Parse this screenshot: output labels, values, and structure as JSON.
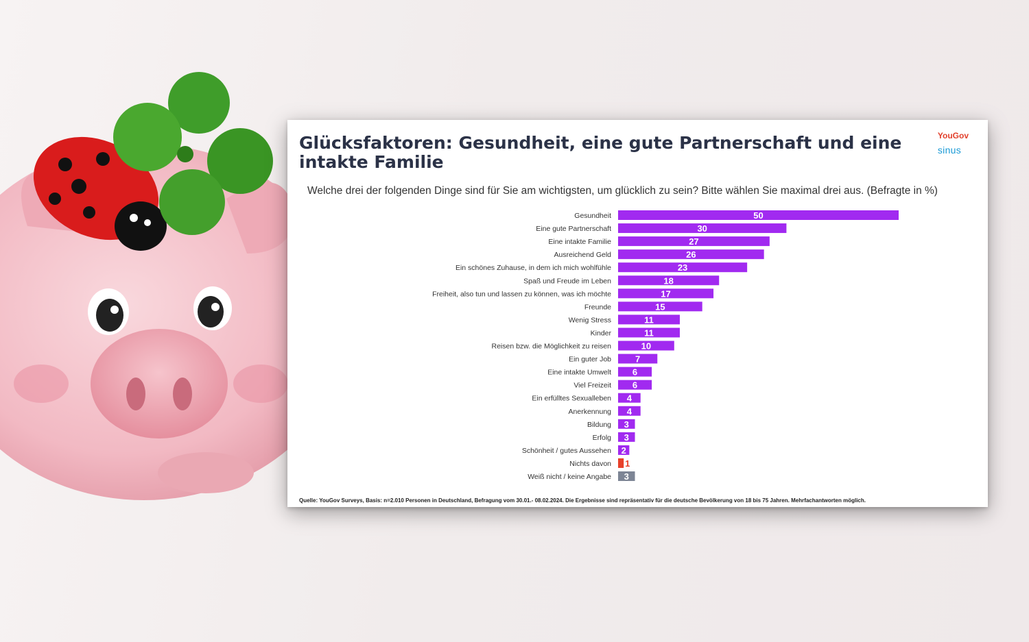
{
  "chart_data": {
    "type": "bar",
    "orientation": "horizontal",
    "title": "Glücksfaktoren: Gesundheit, eine gute Partnerschaft und eine intakte Familie",
    "subtitle": "Welche drei der folgenden Dinge sind für Sie am wichtigsten, um glücklich zu sein? Bitte wählen Sie maximal drei aus. (Befragte in %)",
    "categories": [
      "Gesundheit",
      "Eine gute Partnerschaft",
      "Eine intakte Familie",
      "Ausreichend Geld",
      "Ein schönes Zuhause, in dem ich mich wohlfühle",
      "Spaß und Freude im Leben",
      "Freiheit, also tun und lassen zu können, was ich möchte",
      "Freunde",
      "Wenig Stress",
      "Kinder",
      "Reisen bzw. die Möglichkeit zu reisen",
      "Ein guter Job",
      "Eine intakte Umwelt",
      "Viel Freizeit",
      "Ein erfülltes Sexualleben",
      "Anerkennung",
      "Bildung",
      "Erfolg",
      "Schönheit / gutes Aussehen",
      "Nichts davon",
      "Weiß nicht / keine Angabe"
    ],
    "values": [
      50,
      30,
      27,
      26,
      23,
      18,
      17,
      15,
      11,
      11,
      10,
      7,
      6,
      6,
      4,
      4,
      3,
      3,
      2,
      1,
      3
    ],
    "bar_colors": [
      "#a12af0",
      "#a12af0",
      "#a12af0",
      "#a12af0",
      "#a12af0",
      "#a12af0",
      "#a12af0",
      "#a12af0",
      "#a12af0",
      "#a12af0",
      "#a12af0",
      "#a12af0",
      "#a12af0",
      "#a12af0",
      "#a12af0",
      "#a12af0",
      "#a12af0",
      "#a12af0",
      "#a12af0",
      "#e8412b",
      "#7d8595"
    ],
    "label_colors": [
      "#ffffff",
      "#ffffff",
      "#ffffff",
      "#ffffff",
      "#ffffff",
      "#ffffff",
      "#ffffff",
      "#ffffff",
      "#ffffff",
      "#ffffff",
      "#ffffff",
      "#ffffff",
      "#ffffff",
      "#ffffff",
      "#ffffff",
      "#ffffff",
      "#ffffff",
      "#ffffff",
      "#ffffff",
      "#e8412b",
      "#ffffff"
    ],
    "xlim": [
      0,
      50
    ],
    "grid": false,
    "legend": "none",
    "unit": "%"
  },
  "logo": {
    "yougov": "YouGov",
    "sinus": "sinus"
  },
  "source": "Quelle: YouGov Surveys, Basis: n=2.010 Personen in Deutschland, Befragung vom 30.01.- 08.02.2024. Die Ergebnisse sind repräsentativ für die deutsche Bevölkerung von 18 bis 75 Jahren. Mehrfachantworten möglich.",
  "colors": {
    "accent": "#a12af0",
    "title": "#2b3247",
    "none": "#e8412b",
    "unknown": "#7d8595"
  }
}
